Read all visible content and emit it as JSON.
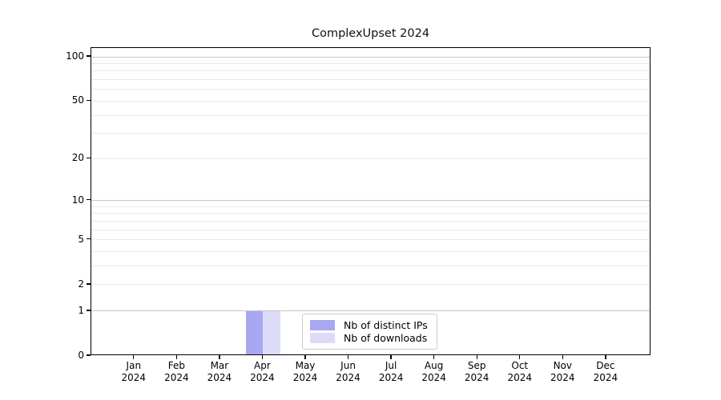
{
  "chart_data": {
    "type": "bar",
    "title": "ComplexUpset 2024",
    "categories": [
      "Jan 2024",
      "Feb 2024",
      "Mar 2024",
      "Apr 2024",
      "May 2024",
      "Jun 2024",
      "Jul 2024",
      "Aug 2024",
      "Sep 2024",
      "Oct 2024",
      "Nov 2024",
      "Dec 2024"
    ],
    "series": [
      {
        "name": "Nb of distinct IPs",
        "color": "#a7a7f2",
        "values": [
          0,
          0,
          0,
          1,
          0,
          0,
          0,
          0,
          0,
          0,
          0,
          0
        ]
      },
      {
        "name": "Nb of downloads",
        "color": "#dcdcf9",
        "values": [
          0,
          0,
          0,
          1,
          0,
          0,
          0,
          0,
          0,
          0,
          0,
          0
        ]
      }
    ],
    "yscale": "log1p",
    "ylim": [
      0,
      115
    ],
    "yticks": [
      0,
      1,
      2,
      5,
      10,
      20,
      50,
      100
    ],
    "gridlines": {
      "major": [
        1,
        10,
        100
      ],
      "minor": [
        2,
        3,
        4,
        5,
        6,
        7,
        8,
        9,
        20,
        30,
        40,
        50,
        60,
        70,
        80,
        90
      ]
    },
    "grid_major_color": "#c6c6c6",
    "grid_minor_color": "#e9e9e9",
    "axis_color": "#000000",
    "legend": {
      "position": "inside-bottom-center"
    }
  }
}
